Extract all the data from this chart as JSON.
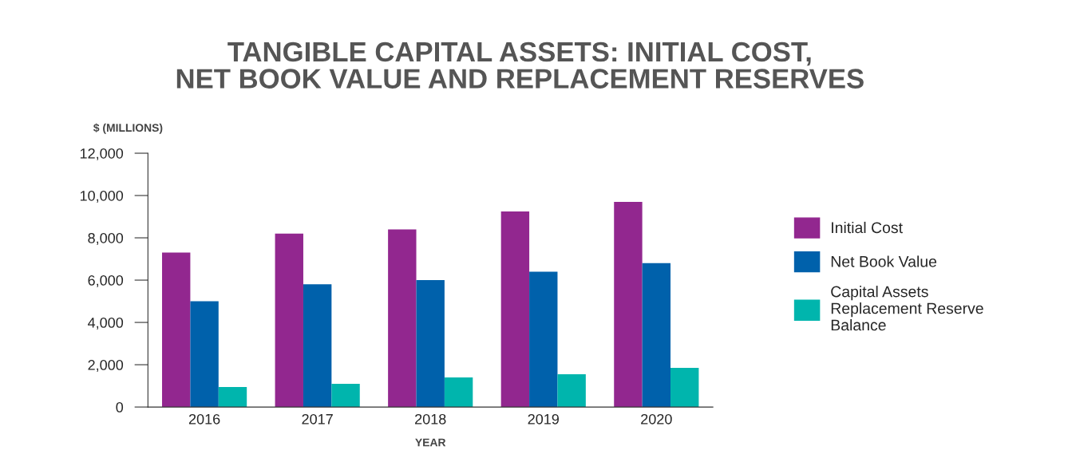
{
  "chart_data": {
    "type": "bar",
    "title": "TANGIBLE CAPITAL ASSETS: INITIAL COST,\nNET BOOK VALUE AND REPLACEMENT RESERVES",
    "ylabel": "$ (MILLIONS)",
    "xlabel": "YEAR",
    "categories": [
      "2016",
      "2017",
      "2018",
      "2019",
      "2020"
    ],
    "series": [
      {
        "name": "Initial Cost",
        "color": "#92278f",
        "values": [
          7300,
          8200,
          8400,
          9250,
          9700
        ]
      },
      {
        "name": "Net Book Value",
        "color": "#0061ab",
        "values": [
          5000,
          5800,
          6000,
          6400,
          6800
        ]
      },
      {
        "name": "Capital Assets\nReplacement Reserve\nBalance",
        "color": "#00b5ad",
        "values": [
          950,
          1100,
          1400,
          1550,
          1850
        ]
      }
    ],
    "ylim": [
      0,
      12000
    ],
    "yticks": [
      0,
      {
        "value": 2000,
        "label": "2,000"
      },
      {
        "value": 4000,
        "label": "4,000"
      },
      {
        "value": 6000,
        "label": "6,000"
      },
      {
        "value": 8000,
        "label": "8,000"
      },
      {
        "value": 10000,
        "label": "10,000"
      },
      {
        "value": 12000,
        "label": "12,000"
      }
    ],
    "grid": false,
    "legend": "right"
  }
}
